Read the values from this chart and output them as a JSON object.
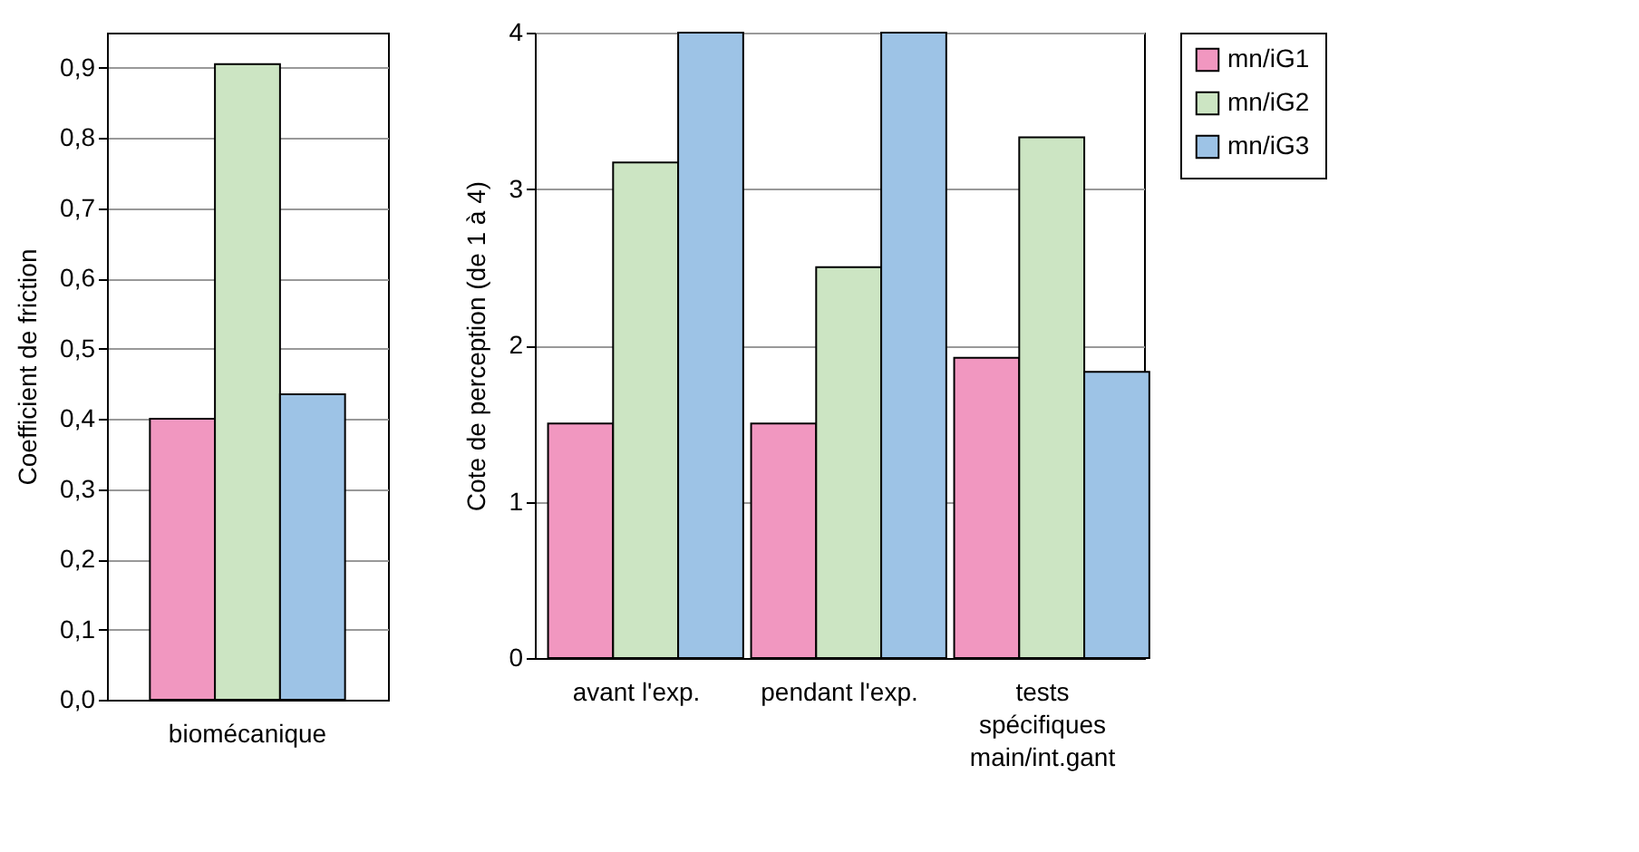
{
  "chart_data": [
    {
      "type": "bar",
      "ylabel": "Coefficient de friction",
      "categories": [
        "biomécanique"
      ],
      "ylim": [
        0,
        0.95
      ],
      "yticks": [
        {
          "value": 0,
          "label": "0,0"
        },
        {
          "value": 0.1,
          "label": "0,1"
        },
        {
          "value": 0.2,
          "label": "0,2"
        },
        {
          "value": 0.3,
          "label": "0,3"
        },
        {
          "value": 0.4,
          "label": "0,4"
        },
        {
          "value": 0.5,
          "label": "0,5"
        },
        {
          "value": 0.6,
          "label": "0,6"
        },
        {
          "value": 0.7,
          "label": "0,7"
        },
        {
          "value": 0.8,
          "label": "0,8"
        },
        {
          "value": 0.9,
          "label": "0,9"
        }
      ],
      "grid": "y",
      "legend": false,
      "series": [
        {
          "color": "#f197c0",
          "values": [
            0.4
          ]
        },
        {
          "color": "#cce5c3",
          "values": [
            0.905
          ]
        },
        {
          "color": "#9dc3e6",
          "values": [
            0.435
          ]
        }
      ]
    },
    {
      "type": "bar",
      "ylabel": "Cote de perception (de 1 à 4)",
      "categories": [
        "avant l'exp.",
        "pendant l'exp.",
        "tests spécifiques main/int.gant"
      ],
      "ylim": [
        0,
        4
      ],
      "yticks": [
        0,
        1,
        2,
        3,
        4
      ],
      "grid": "y",
      "legend": "right",
      "series": [
        {
          "name": "mn/iG1",
          "color": "#f197c0",
          "values": [
            1.5,
            1.5,
            1.92
          ]
        },
        {
          "name": "mn/iG2",
          "color": "#cce5c3",
          "values": [
            3.17,
            2.5,
            3.33
          ]
        },
        {
          "name": "mn/iG3",
          "color": "#9dc3e6",
          "values": [
            4,
            4,
            1.83
          ]
        }
      ]
    }
  ]
}
